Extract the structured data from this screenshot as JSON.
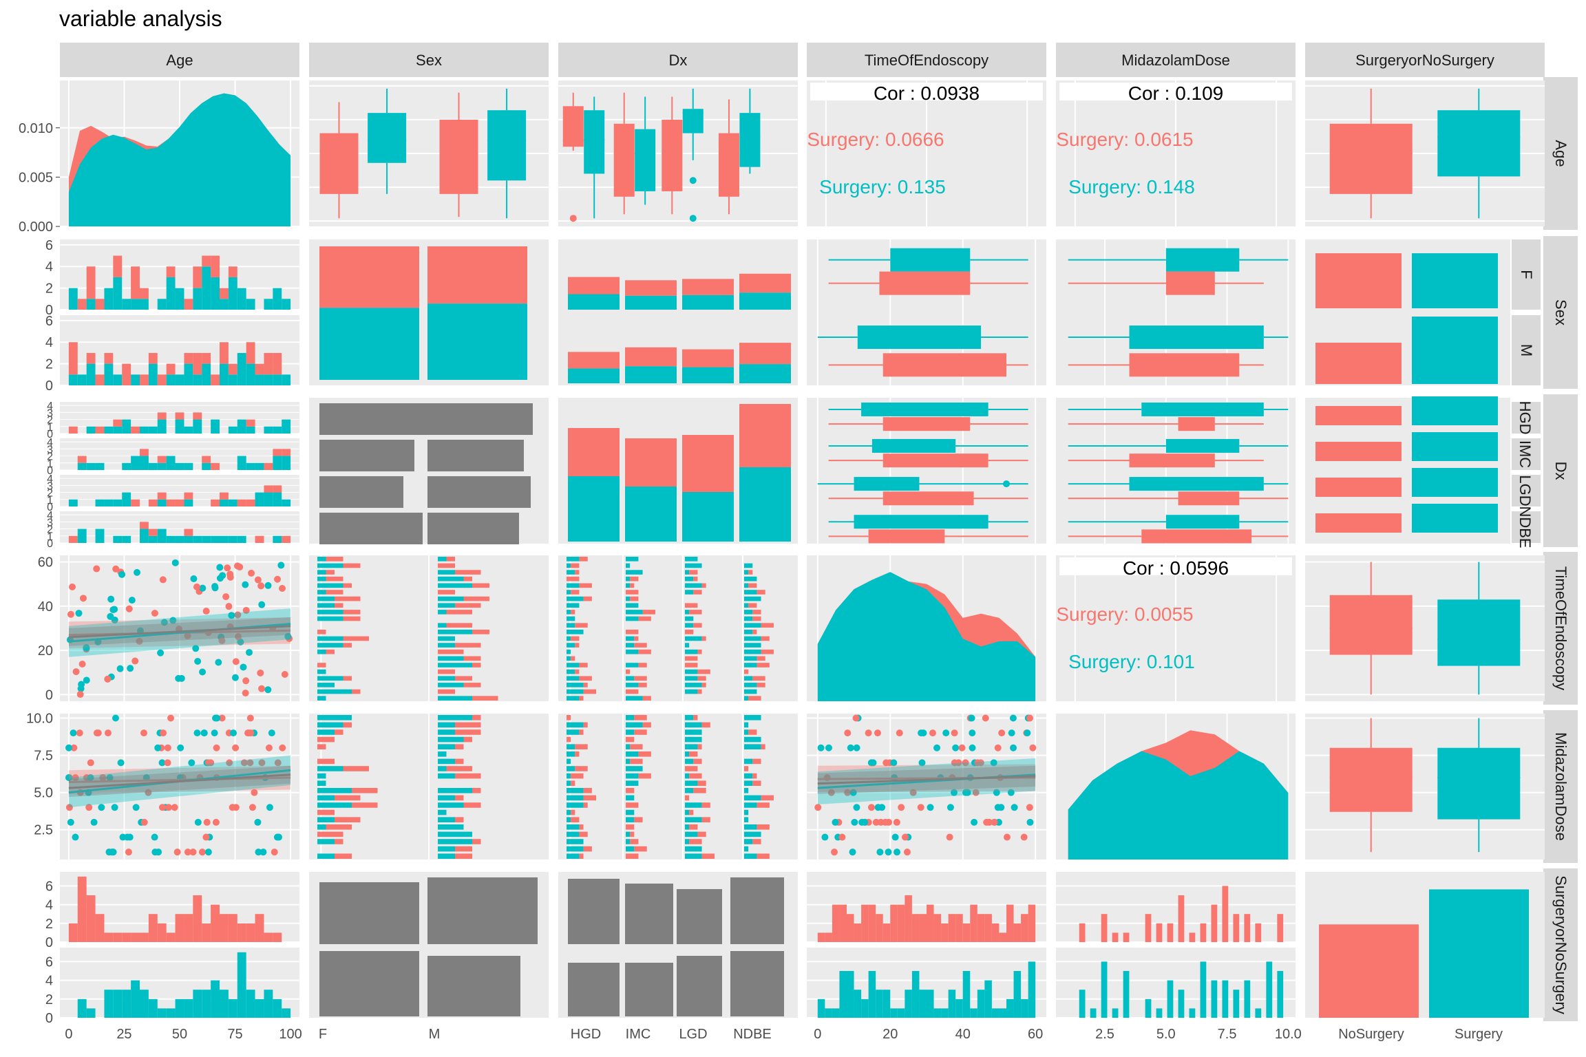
{
  "chart_data": {
    "type": "pairs",
    "title": "variable analysis",
    "variables": [
      "Age",
      "Sex",
      "Dx",
      "TimeOfEndoscopy",
      "MidazolamDose",
      "SurgeryorNoSurgery"
    ],
    "colors": {
      "NoSurgery": "#F8766D",
      "Surgery": "#00BFC4",
      "neutral": "#7F7F7F",
      "panel": "#EBEBEB",
      "strip": "#D9D9D9"
    },
    "axes": {
      "age_x": {
        "range": [
          0,
          100
        ],
        "ticks": [
          "0",
          "25",
          "50",
          "75",
          "100"
        ]
      },
      "sex_x": {
        "ticks": [
          "F",
          "M"
        ]
      },
      "dx_x": {
        "ticks": [
          "HGD",
          "IMC",
          "LGD",
          "NDBE"
        ]
      },
      "time_x": {
        "range": [
          0,
          60
        ],
        "ticks": [
          "0",
          "20",
          "40",
          "60"
        ]
      },
      "mid_x": {
        "range": [
          0.5,
          10
        ],
        "ticks": [
          "2.5",
          "5.0",
          "7.5",
          "10.0"
        ]
      },
      "surg_x": {
        "ticks": [
          "NoSurgery",
          "Surgery"
        ]
      },
      "age_density_y": {
        "range": [
          0,
          0.014
        ],
        "ticks": [
          "0.000",
          "0.005",
          "0.010"
        ]
      },
      "sex_count_y": {
        "ticks": [
          "0",
          "2",
          "4",
          "6"
        ]
      },
      "dx_count_y": {
        "ticks": [
          "0",
          "1",
          "2",
          "3",
          "4"
        ]
      },
      "time_y": {
        "range": [
          0,
          62
        ],
        "ticks": [
          "0",
          "20",
          "40",
          "60"
        ]
      },
      "mid_y": {
        "range": [
          0.8,
          10.3
        ],
        "ticks": [
          "2.5",
          "5.0",
          "7.5",
          "10.0"
        ]
      },
      "surg_count_y": {
        "ticks": [
          "0",
          "2",
          "4",
          "6"
        ]
      }
    },
    "row_strips": {
      "Sex": [
        "F",
        "M"
      ],
      "Dx": [
        "HGD",
        "IMC",
        "LGD",
        "NDBE"
      ]
    },
    "correlations": [
      {
        "pair": "Age-TimeOfEndoscopy",
        "overall": "Cor : 0.0938",
        "nosurgery": "Surgery: 0.0666",
        "surgery": "Surgery: 0.135"
      },
      {
        "pair": "Age-MidazolamDose",
        "overall": "Cor : 0.109",
        "nosurgery": "Surgery: 0.0615",
        "surgery": "Surgery: 0.148"
      },
      {
        "pair": "TimeOfEndoscopy-MidazolamDose",
        "overall": "Cor : 0.0596",
        "nosurgery": "Surgery: 0.0055",
        "surgery": "Surgery: 0.101"
      }
    ],
    "age_density": {
      "x": [
        0,
        5,
        10,
        15,
        20,
        25,
        30,
        35,
        40,
        45,
        50,
        55,
        60,
        65,
        70,
        75,
        80,
        85,
        90,
        95,
        100
      ],
      "NoSurgery": [
        0.005,
        0.0097,
        0.0102,
        0.0096,
        0.0089,
        0.0091,
        0.0087,
        0.0082,
        0.0081,
        0.0089,
        0.0101,
        0.0115,
        0.0125,
        0.0132,
        0.0135,
        0.0133,
        0.0125,
        0.0112,
        0.0097,
        0.0083,
        0.0072
      ],
      "Surgery": [
        0.0035,
        0.0063,
        0.008,
        0.0089,
        0.0093,
        0.009,
        0.0084,
        0.0078,
        0.008,
        0.0089,
        0.0101,
        0.0115,
        0.0125,
        0.0132,
        0.0135,
        0.0133,
        0.0125,
        0.0112,
        0.0097,
        0.0083,
        0.0072
      ]
    },
    "age_by_sex_box": [
      {
        "group": "F-NoSurgery",
        "min": 2,
        "q1": 20,
        "median": 42,
        "q3": 65,
        "max": 88
      },
      {
        "group": "F-Surgery",
        "min": 20,
        "q1": 43,
        "median": 60,
        "q3": 80,
        "max": 98
      },
      {
        "group": "M-NoSurgery",
        "min": 3,
        "q1": 20,
        "median": 50,
        "q3": 75,
        "max": 95
      },
      {
        "group": "M-Surgery",
        "min": 2,
        "q1": 30,
        "median": 60,
        "q3": 82,
        "max": 98
      }
    ],
    "age_by_dx_box": [
      {
        "group": "HGD-NoSurgery",
        "min": 52,
        "q1": 55,
        "median": 60,
        "q3": 85,
        "max": 95
      },
      {
        "group": "HGD-Surgery",
        "min": 2,
        "q1": 35,
        "median": 60,
        "q3": 82,
        "max": 92
      },
      {
        "group": "IMC-NoSurgery",
        "min": 5,
        "q1": 18,
        "median": 50,
        "q3": 72,
        "max": 95
      },
      {
        "group": "IMC-Surgery",
        "min": 12,
        "q1": 22,
        "median": 50,
        "q3": 68,
        "max": 92
      },
      {
        "group": "LGD-NoSurgery",
        "min": 5,
        "q1": 22,
        "median": 50,
        "q3": 75,
        "max": 92
      },
      {
        "group": "LGD-Surgery",
        "min": 45,
        "q1": 65,
        "median": 80,
        "q3": 83,
        "max": 98
      },
      {
        "group": "NDBE-NoSurgery",
        "min": 5,
        "q1": 18,
        "median": 50,
        "q3": 65,
        "max": 90
      },
      {
        "group": "NDBE-Surgery",
        "min": 35,
        "q1": 40,
        "median": 62,
        "q3": 80,
        "max": 98
      }
    ],
    "age_by_surgery_box": [
      {
        "group": "NoSurgery",
        "min": 2,
        "q1": 20,
        "median": 50,
        "q3": 72,
        "max": 98
      },
      {
        "group": "Surgery",
        "min": 2,
        "q1": 33,
        "median": 62,
        "q3": 82,
        "max": 98
      }
    ],
    "sex_counts": {
      "F": {
        "NoSurgery": 29,
        "Surgery": 34
      },
      "M": {
        "NoSurgery": 30,
        "Surgery": 40
      }
    },
    "dx_counts": {
      "HGD": {
        "NoSurgery": 14,
        "Surgery": 20
      },
      "IMC": {
        "NoSurgery": 15,
        "Surgery": 17
      },
      "LGD": {
        "NoSurgery": 18,
        "Surgery": 15
      },
      "NDBE": {
        "NoSurgery": 20,
        "Surgery": 23
      }
    },
    "dx_by_sex": {
      "HGD": {
        "F": 28,
        "M": 40
      },
      "IMC": {
        "F": 26,
        "M": 25
      },
      "LGD": {
        "F": 22,
        "M": 27
      },
      "NDBE": {
        "F": 28,
        "M": 25
      }
    },
    "surgery_counts": {
      "NoSurgery": 48,
      "Surgery": 66
    },
    "surgery_by_sex": {
      "F": {
        "NoSurgery": 33,
        "Surgery": 38
      },
      "M": {
        "NoSurgery": 40,
        "Surgery": 45
      }
    },
    "surgery_by_dx": {
      "HGD": {
        "NoSurgery": 33,
        "Surgery": 26
      },
      "IMC": {
        "NoSurgery": 31,
        "Surgery": 22
      },
      "LGD": {
        "NoSurgery": 29,
        "Surgery": 25
      },
      "NDBE": {
        "NoSurgery": 34,
        "Surgery": 24
      }
    },
    "age_hist_by_sex": {
      "F": {
        "NoSurgery": [
          0,
          1,
          3,
          1,
          0,
          2,
          0,
          3,
          1,
          0,
          0,
          1,
          0,
          1,
          2,
          1,
          2,
          1,
          1,
          0,
          0,
          0,
          0,
          0,
          0
        ],
        "Surgery": [
          2,
          0,
          1,
          0,
          2,
          3,
          1,
          1,
          1,
          0,
          1,
          3,
          2,
          0,
          2,
          4,
          3,
          1,
          3,
          2,
          1,
          0,
          1,
          2,
          1
        ]
      },
      "M": {
        "NoSurgery": [
          3,
          0,
          1,
          1,
          1,
          0,
          2,
          0,
          1,
          1,
          1,
          1,
          0,
          1,
          2,
          1,
          1,
          2,
          1,
          0,
          2,
          1,
          2,
          2,
          0
        ],
        "Surgery": [
          1,
          1,
          2,
          0,
          2,
          1,
          0,
          1,
          0,
          2,
          0,
          1,
          1,
          2,
          1,
          2,
          0,
          2,
          1,
          3,
          2,
          1,
          1,
          1,
          1
        ]
      }
    },
    "age_hist_by_surgery": {
      "NoSurgery": [
        2,
        7,
        5,
        3,
        1,
        1,
        1,
        1,
        1,
        3,
        2,
        1,
        3,
        3,
        5,
        2,
        4,
        3,
        3,
        2,
        2,
        3,
        1,
        1,
        0
      ],
      "Surgery": [
        0,
        2,
        1,
        0,
        3,
        3,
        3,
        4,
        3,
        2,
        1,
        1,
        2,
        2,
        3,
        3,
        4,
        3,
        2,
        7,
        3,
        2,
        3,
        2,
        1
      ]
    },
    "time_hist_by_surgery": {
      "NoSurgery": [
        1,
        1,
        4,
        4,
        3,
        2,
        4,
        4,
        3,
        2,
        4,
        4,
        5,
        3,
        3,
        4,
        3,
        2,
        3,
        3,
        2,
        4,
        3,
        3,
        2,
        1,
        4,
        2,
        3,
        4
      ],
      "Surgery": [
        2,
        1,
        1,
        5,
        5,
        3,
        2,
        5,
        3,
        3,
        1,
        1,
        3,
        5,
        3,
        3,
        1,
        1,
        3,
        2,
        5,
        1,
        3,
        4,
        1,
        1,
        2,
        5,
        2,
        6
      ]
    },
    "mid_hist_by_surgery": {
      "NoSurgery": [
        0,
        2,
        0,
        3,
        1,
        1,
        0,
        3,
        2,
        2,
        5,
        1,
        2,
        4,
        6,
        3,
        3,
        2,
        0,
        3
      ],
      "Surgery": [
        0,
        3,
        1,
        6,
        1,
        5,
        0,
        2,
        1,
        4,
        3,
        1,
        6,
        4,
        4,
        3,
        4,
        1,
        6,
        5
      ]
    },
    "time_by_sex_box": [
      {
        "group": "F-Surgery",
        "min": 3,
        "q1": 20,
        "median": 33,
        "q3": 42,
        "max": 58
      },
      {
        "group": "F-NoSurgery",
        "min": 3,
        "q1": 17,
        "median": 28,
        "q3": 42,
        "max": 58
      },
      {
        "group": "M-Surgery",
        "min": 0,
        "q1": 11,
        "median": 25,
        "q3": 45,
        "max": 58
      },
      {
        "group": "M-NoSurgery",
        "min": 3,
        "q1": 18,
        "median": 32,
        "q3": 52,
        "max": 58
      }
    ],
    "time_by_dx_box": [
      {
        "group": "HGD-Surgery",
        "min": 3,
        "q1": 12,
        "median": 28,
        "q3": 47,
        "max": 58
      },
      {
        "group": "HGD-NoSurgery",
        "min": 3,
        "q1": 18,
        "median": 28,
        "q3": 42,
        "max": 58
      },
      {
        "group": "IMC-Surgery",
        "min": 3,
        "q1": 15,
        "median": 25,
        "q3": 38,
        "max": 58
      },
      {
        "group": "IMC-NoSurgery",
        "min": 3,
        "q1": 18,
        "median": 35,
        "q3": 47,
        "max": 58
      },
      {
        "group": "LGD-Surgery",
        "min": 0,
        "q1": 10,
        "median": 18,
        "q3": 28,
        "max": 58
      },
      {
        "group": "LGD-NoSurgery",
        "min": 3,
        "q1": 18,
        "median": 28,
        "q3": 43,
        "max": 58
      },
      {
        "group": "NDBE-Surgery",
        "min": 3,
        "q1": 10,
        "median": 28,
        "q3": 47,
        "max": 58
      },
      {
        "group": "NDBE-NoSurgery",
        "min": 3,
        "q1": 14,
        "median": 22,
        "q3": 35,
        "max": 58
      }
    ],
    "time_by_surgery_box": [
      {
        "group": "NoSurgery",
        "min": 0,
        "q1": 18,
        "median": 30,
        "q3": 45,
        "max": 60
      },
      {
        "group": "Surgery",
        "min": 0,
        "q1": 13,
        "median": 25,
        "q3": 43,
        "max": 60
      }
    ],
    "mid_by_sex_box": [
      {
        "group": "F-Surgery",
        "min": 1,
        "q1": 5.0,
        "median": 6.5,
        "q3": 8.0,
        "max": 10
      },
      {
        "group": "F-NoSurgery",
        "min": 1,
        "q1": 5.0,
        "median": 6.0,
        "q3": 7.0,
        "max": 9
      },
      {
        "group": "M-Surgery",
        "min": 1,
        "q1": 3.5,
        "median": 5.5,
        "q3": 9.0,
        "max": 10
      },
      {
        "group": "M-NoSurgery",
        "min": 1,
        "q1": 3.5,
        "median": 6.0,
        "q3": 8.0,
        "max": 9
      }
    ],
    "mid_by_dx_box": [
      {
        "group": "HGD-Surgery",
        "min": 1,
        "q1": 4.0,
        "median": 6.0,
        "q3": 9.0,
        "max": 10
      },
      {
        "group": "HGD-NoSurgery",
        "min": 1,
        "q1": 5.5,
        "median": 6.0,
        "q3": 7.0,
        "max": 9
      },
      {
        "group": "IMC-Surgery",
        "min": 1,
        "q1": 5.0,
        "median": 6.0,
        "q3": 8.0,
        "max": 10
      },
      {
        "group": "IMC-NoSurgery",
        "min": 1,
        "q1": 3.5,
        "median": 6.0,
        "q3": 7.0,
        "max": 9
      },
      {
        "group": "LGD-Surgery",
        "min": 1,
        "q1": 3.5,
        "median": 6.0,
        "q3": 9.0,
        "max": 10
      },
      {
        "group": "LGD-NoSurgery",
        "min": 1,
        "q1": 5.5,
        "median": 7.0,
        "q3": 8.0,
        "max": 10
      },
      {
        "group": "NDBE-Surgery",
        "min": 1,
        "q1": 5.0,
        "median": 6.5,
        "q3": 8.0,
        "max": 10
      },
      {
        "group": "NDBE-NoSurgery",
        "min": 1,
        "q1": 4.0,
        "median": 6.0,
        "q3": 8.5,
        "max": 10
      }
    ],
    "mid_by_surgery_box": [
      {
        "group": "NoSurgery",
        "min": 1,
        "q1": 3.7,
        "median": 6.0,
        "q3": 8.0,
        "max": 10
      },
      {
        "group": "Surgery",
        "min": 1,
        "q1": 3.2,
        "median": 6.0,
        "q3": 8.0,
        "max": 10
      }
    ],
    "time_density": {
      "x": [
        0,
        5,
        10,
        15,
        20,
        25,
        30,
        35,
        40,
        45,
        50,
        55,
        60
      ],
      "NoSurgery": [
        0.011,
        0.0175,
        0.0215,
        0.0233,
        0.0248,
        0.023,
        0.0225,
        0.0205,
        0.016,
        0.0168,
        0.016,
        0.013,
        0.0085
      ],
      "Surgery": [
        0.011,
        0.0175,
        0.0215,
        0.0233,
        0.0248,
        0.023,
        0.0215,
        0.018,
        0.012,
        0.0105,
        0.0115,
        0.0115,
        0.0085
      ]
    },
    "mid_density": {
      "x": [
        1,
        2,
        3,
        4,
        5,
        6,
        7,
        8,
        9,
        10
      ],
      "NoSurgery": [
        0.06,
        0.095,
        0.115,
        0.13,
        0.14,
        0.155,
        0.15,
        0.13,
        0.115,
        0.08
      ],
      "Surgery": [
        0.06,
        0.095,
        0.115,
        0.13,
        0.12,
        0.1,
        0.11,
        0.13,
        0.115,
        0.08
      ]
    },
    "age_time_fit": {
      "NoSurgery": {
        "x": [
          0,
          100
        ],
        "y": [
          27,
          29
        ],
        "band": 6
      },
      "Surgery": {
        "x": [
          0,
          100
        ],
        "y": [
          24,
          32
        ],
        "band": 7
      },
      "overall": {
        "x": [
          0,
          100
        ],
        "y": [
          26,
          31
        ],
        "band": 4
      }
    },
    "age_mid_fit": {
      "NoSurgery": {
        "x": [
          0,
          100
        ],
        "y": [
          5.7,
          6.0
        ],
        "band": 0.8
      },
      "Surgery": {
        "x": [
          0,
          100
        ],
        "y": [
          5.0,
          6.5
        ],
        "band": 1.0
      },
      "overall": {
        "x": [
          0,
          100
        ],
        "y": [
          5.3,
          6.2
        ],
        "band": 0.6
      }
    },
    "time_mid_fit": {
      "NoSurgery": {
        "x": [
          0,
          60
        ],
        "y": [
          5.9,
          6.0
        ],
        "band": 0.9
      },
      "Surgery": {
        "x": [
          0,
          60
        ],
        "y": [
          5.3,
          6.2
        ],
        "band": 1.1
      },
      "overall": {
        "x": [
          0,
          60
        ],
        "y": [
          5.6,
          6.1
        ],
        "band": 0.7
      }
    }
  }
}
